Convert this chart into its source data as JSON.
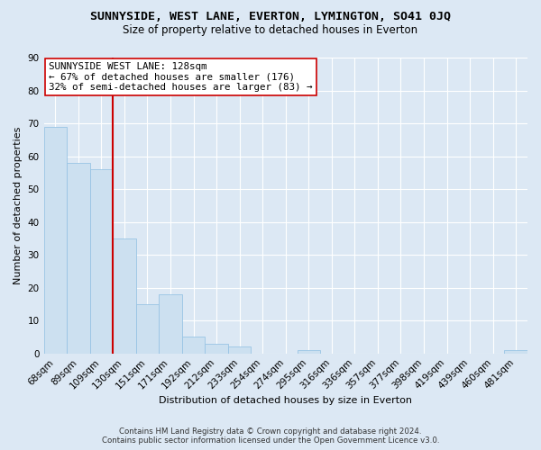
{
  "title": "SUNNYSIDE, WEST LANE, EVERTON, LYMINGTON, SO41 0JQ",
  "subtitle": "Size of property relative to detached houses in Everton",
  "xlabel": "Distribution of detached houses by size in Everton",
  "ylabel": "Number of detached properties",
  "bar_color": "#cce0f0",
  "bar_edge_color": "#99c4e4",
  "categories": [
    "68sqm",
    "89sqm",
    "109sqm",
    "130sqm",
    "151sqm",
    "171sqm",
    "192sqm",
    "212sqm",
    "233sqm",
    "254sqm",
    "274sqm",
    "295sqm",
    "316sqm",
    "336sqm",
    "357sqm",
    "377sqm",
    "398sqm",
    "419sqm",
    "439sqm",
    "460sqm",
    "481sqm"
  ],
  "values": [
    69,
    58,
    56,
    35,
    15,
    18,
    5,
    3,
    2,
    0,
    0,
    1,
    0,
    0,
    0,
    0,
    0,
    0,
    0,
    0,
    1
  ],
  "ylim": [
    0,
    90
  ],
  "yticks": [
    0,
    10,
    20,
    30,
    40,
    50,
    60,
    70,
    80,
    90
  ],
  "vline_color": "#cc0000",
  "vline_x_idx": 2.5,
  "annotation_title": "SUNNYSIDE WEST LANE: 128sqm",
  "annotation_line1": "← 67% of detached houses are smaller (176)",
  "annotation_line2": "32% of semi-detached houses are larger (83) →",
  "annotation_box_color": "#ffffff",
  "annotation_box_edge": "#cc0000",
  "footer_line1": "Contains HM Land Registry data © Crown copyright and database right 2024.",
  "footer_line2": "Contains public sector information licensed under the Open Government Licence v3.0.",
  "background_color": "#dce8f4",
  "plot_background": "#dce8f4",
  "grid_color": "#ffffff",
  "title_fontsize": 9.5,
  "subtitle_fontsize": 8.5,
  "tick_fontsize": 7.5,
  "axis_label_fontsize": 8,
  "annotation_fontsize": 7.8
}
